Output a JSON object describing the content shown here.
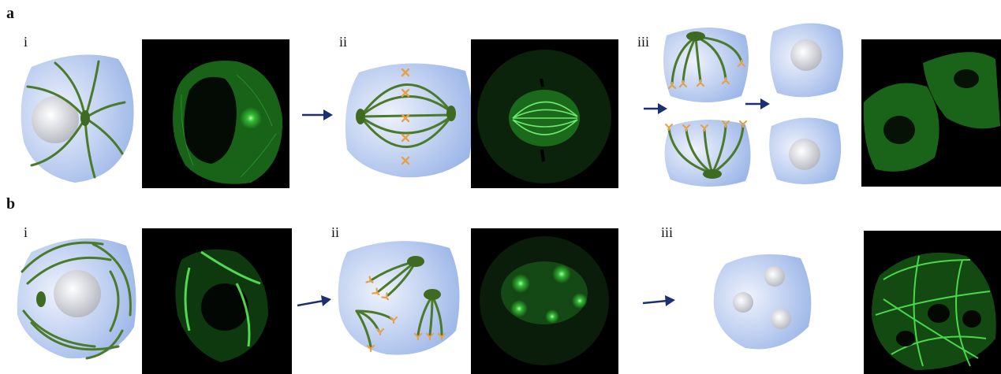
{
  "figure": {
    "rows": [
      {
        "id": "a",
        "label": "a",
        "steps": [
          "i",
          "ii",
          "iii"
        ]
      },
      {
        "id": "b",
        "label": "b",
        "steps": [
          "i",
          "ii",
          "iii"
        ]
      }
    ]
  },
  "colors": {
    "cell_light": "#eef2fc",
    "cell_dark": "#9db7e8",
    "microtubule": "#4a7a2a",
    "centrosome": "#3f6a22",
    "kinetochore": "#e6a04a",
    "arrow": "#1c2f6e",
    "micrograph_bg": "#000000",
    "fluorescence": "#37c837"
  },
  "icons": [
    "right-arrow-icon"
  ]
}
